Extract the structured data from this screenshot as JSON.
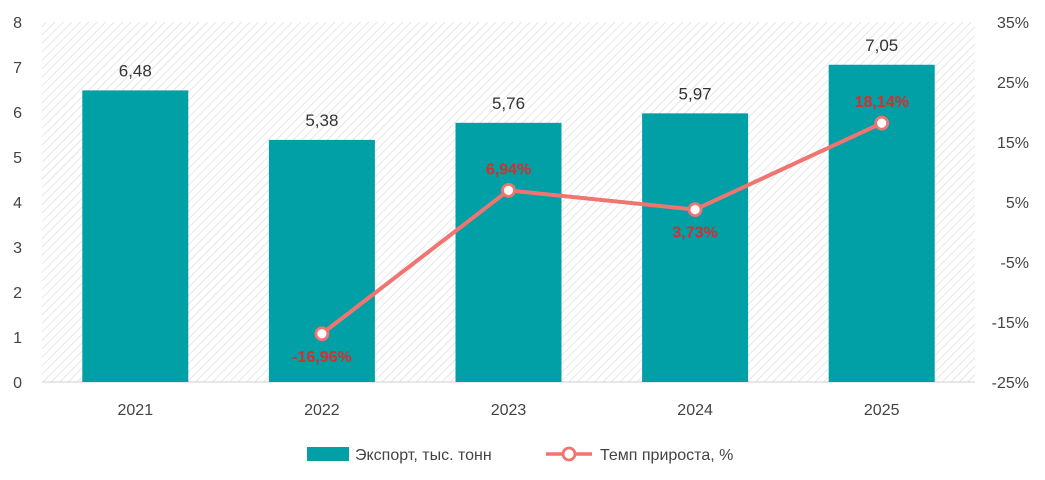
{
  "chart_data": {
    "type": "bar",
    "categories": [
      "2021",
      "2022",
      "2023",
      "2024",
      "2025"
    ],
    "series": [
      {
        "name": "Экспорт, тыс. тонн",
        "type": "bar",
        "axis": "left",
        "values": [
          6.48,
          5.38,
          5.76,
          5.97,
          7.05
        ],
        "labels": [
          "6,48",
          "5,38",
          "5,76",
          "5,97",
          "7,05"
        ],
        "color": "#00a0a6"
      },
      {
        "name": "Темп прироста, %",
        "type": "line",
        "axis": "right",
        "values": [
          null,
          -16.96,
          6.94,
          3.73,
          18.14
        ],
        "labels": [
          "",
          "-16,96%",
          "6,94%",
          "3,73%",
          "18,14%"
        ],
        "color": "#f07470",
        "label_color": "#d62e2e"
      }
    ],
    "ylim_left": [
      0,
      8
    ],
    "yticks_left": [
      "0",
      "1",
      "2",
      "3",
      "4",
      "5",
      "6",
      "7",
      "8"
    ],
    "ylim_right": [
      -25,
      35
    ],
    "yticks_right": [
      "-25%",
      "-15%",
      "-5%",
      "5%",
      "15%",
      "25%",
      "35%"
    ],
    "legend_position": "bottom",
    "background": "hatched"
  }
}
